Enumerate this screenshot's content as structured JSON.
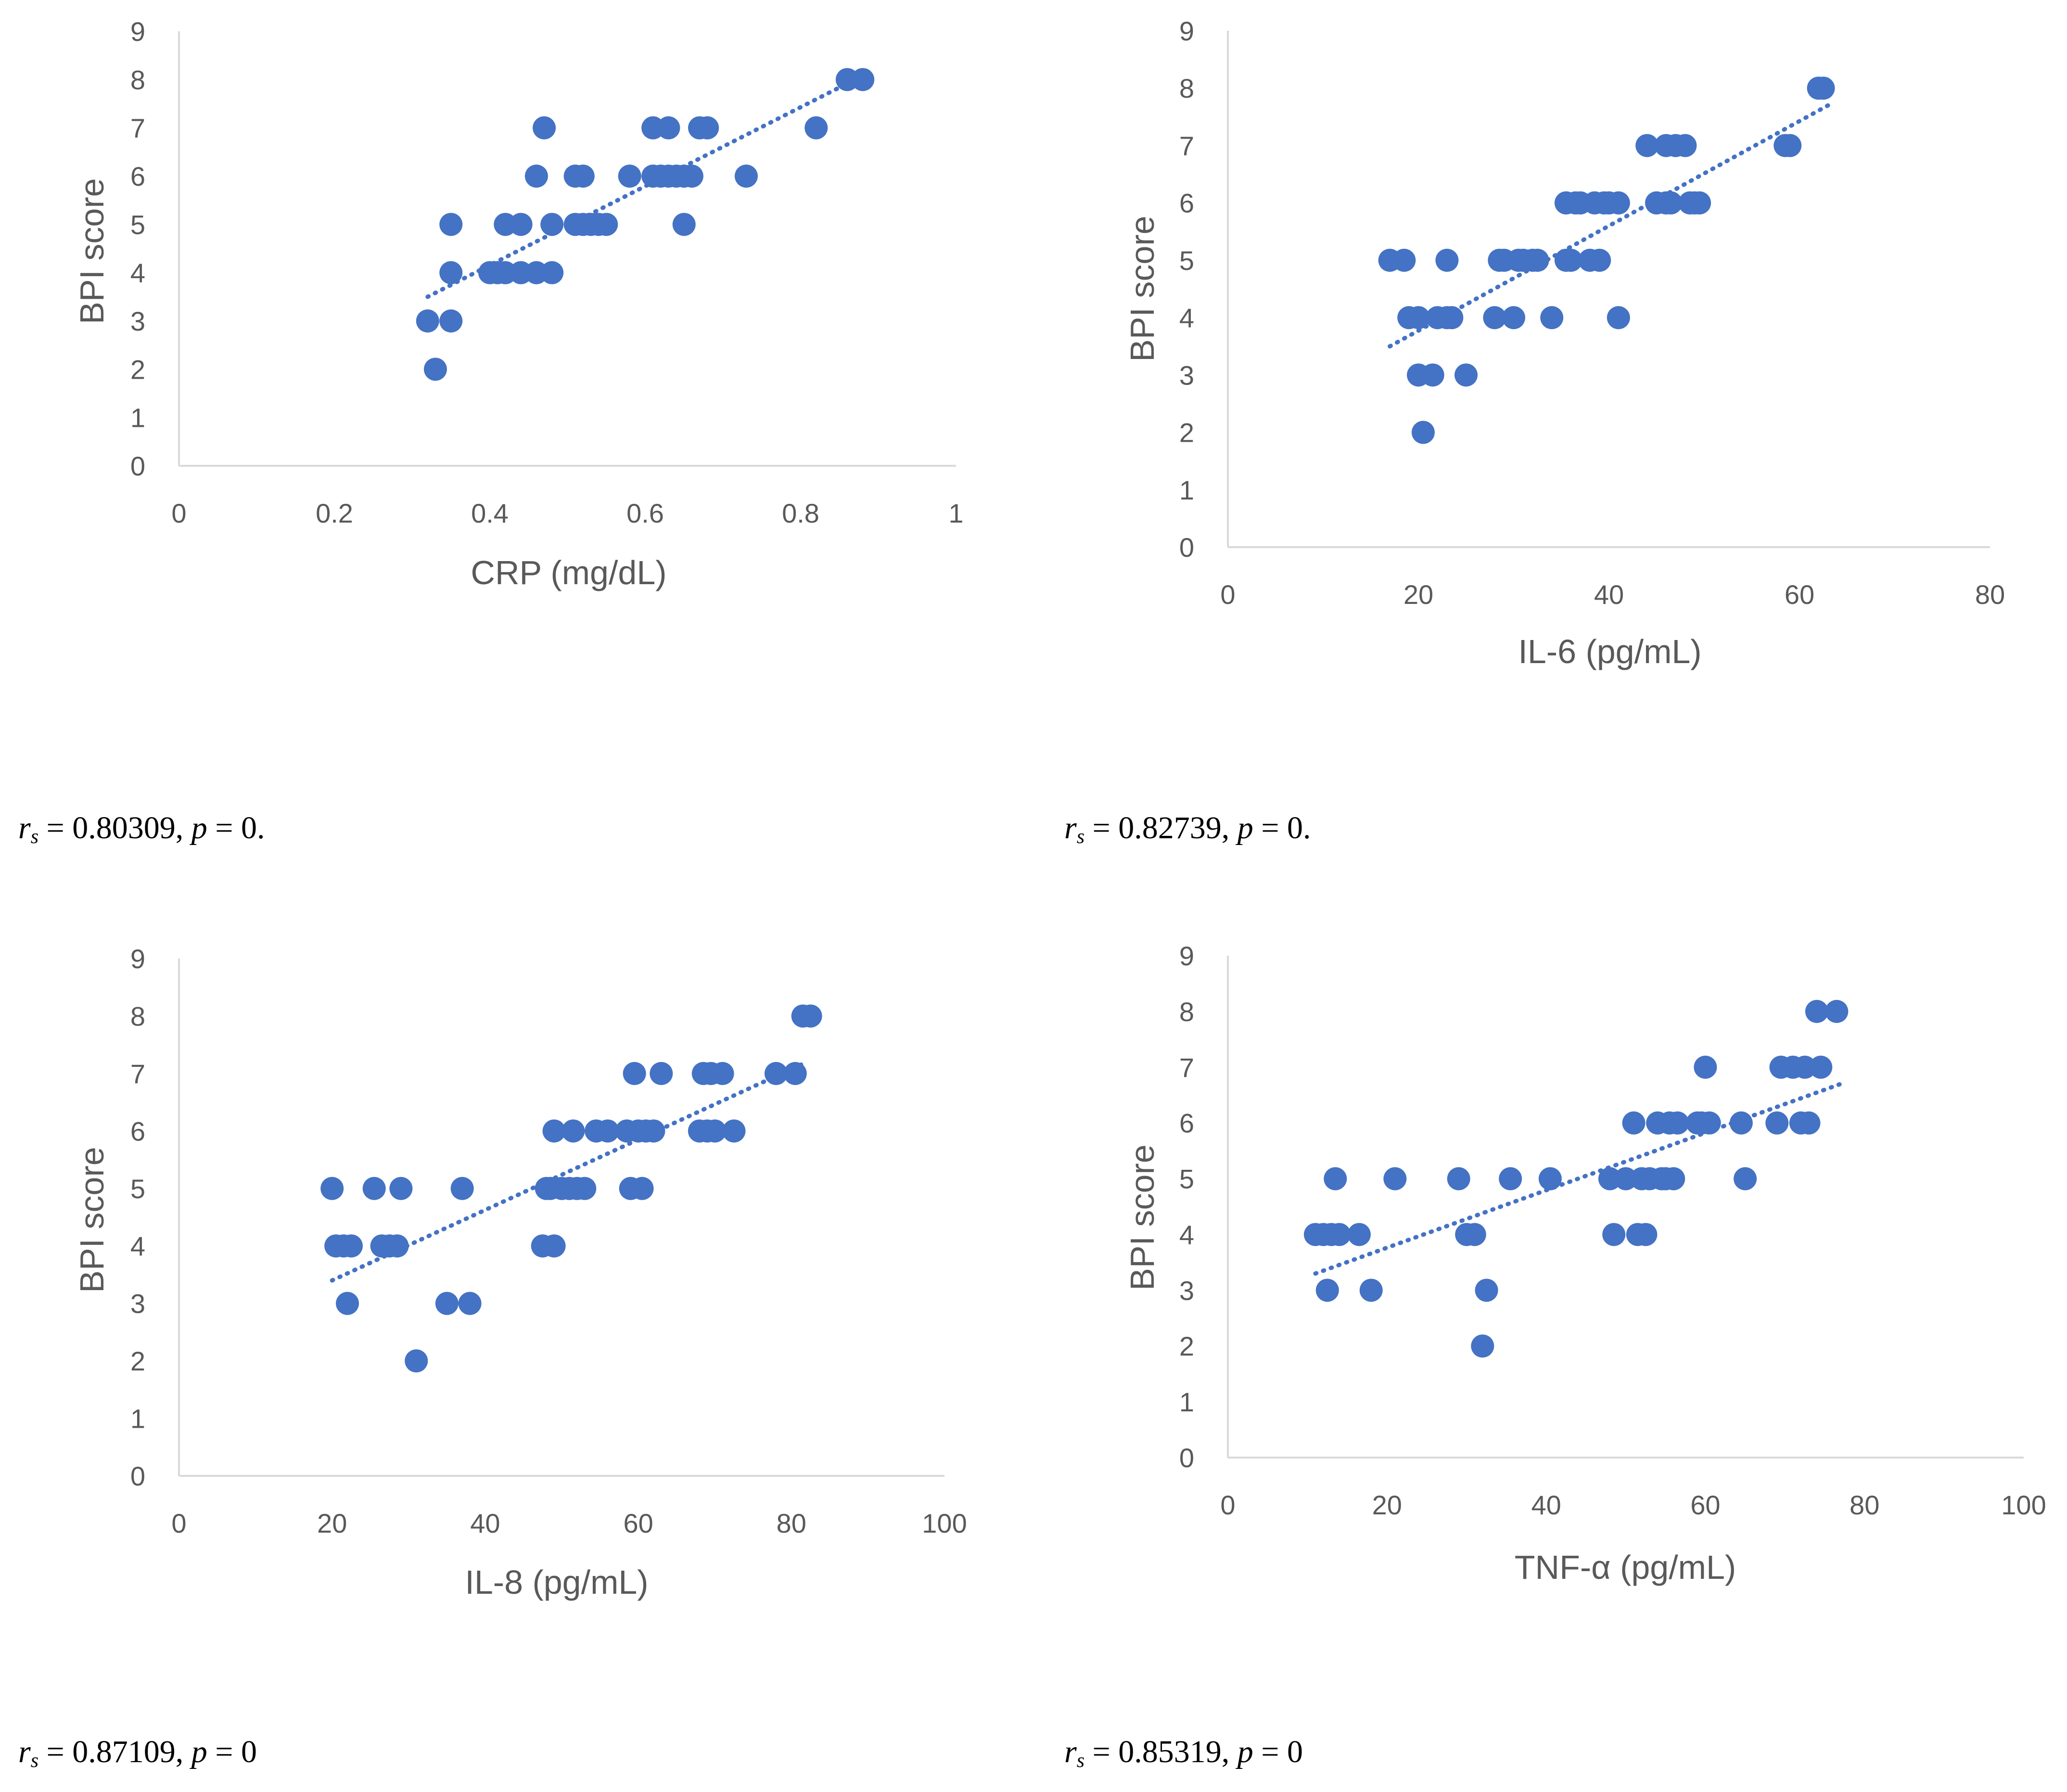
{
  "colors": {
    "marker": "#4472c4",
    "axis": "#d9d9d9",
    "text": "#595959",
    "stats": "#000000"
  },
  "chart_data": [
    {
      "type": "scatter",
      "title": "",
      "xlabel": "CRP (mg/dL)",
      "ylabel": "BPI score",
      "xlim": [
        0,
        1
      ],
      "ylim": [
        0,
        9
      ],
      "xticks": [
        "0",
        "0.2",
        "0.4",
        "0.6",
        "0.8",
        "1"
      ],
      "yticks": [
        "0",
        "1",
        "2",
        "3",
        "4",
        "5",
        "6",
        "7",
        "8",
        "9"
      ],
      "trendline": {
        "style": "dotted-linear",
        "x": [
          0.32,
          0.87
        ],
        "y": [
          3.5,
          8.0
        ]
      },
      "points": [
        [
          0.32,
          3
        ],
        [
          0.33,
          2
        ],
        [
          0.35,
          3
        ],
        [
          0.35,
          4
        ],
        [
          0.35,
          5
        ],
        [
          0.4,
          4
        ],
        [
          0.41,
          4
        ],
        [
          0.42,
          4
        ],
        [
          0.42,
          5
        ],
        [
          0.44,
          4
        ],
        [
          0.44,
          5
        ],
        [
          0.46,
          4
        ],
        [
          0.46,
          6
        ],
        [
          0.47,
          7
        ],
        [
          0.48,
          4
        ],
        [
          0.48,
          5
        ],
        [
          0.51,
          5
        ],
        [
          0.51,
          6
        ],
        [
          0.52,
          6
        ],
        [
          0.52,
          5
        ],
        [
          0.53,
          5
        ],
        [
          0.54,
          5
        ],
        [
          0.55,
          5
        ],
        [
          0.58,
          6
        ],
        [
          0.61,
          6
        ],
        [
          0.61,
          7
        ],
        [
          0.62,
          6
        ],
        [
          0.63,
          6
        ],
        [
          0.63,
          7
        ],
        [
          0.64,
          6
        ],
        [
          0.65,
          5
        ],
        [
          0.65,
          6
        ],
        [
          0.66,
          6
        ],
        [
          0.67,
          7
        ],
        [
          0.68,
          7
        ],
        [
          0.73,
          6
        ],
        [
          0.82,
          7
        ],
        [
          0.86,
          8
        ],
        [
          0.88,
          8
        ]
      ],
      "stats": {
        "rs_label": "r",
        "rs_sub": "s",
        "rs_value": " = 0.80309, ",
        "p_label": "p",
        "p_value": " = 0."
      }
    },
    {
      "type": "scatter",
      "title": "",
      "xlabel": "IL-6 (pg/mL)",
      "ylabel": "BPI score",
      "xlim": [
        0,
        80
      ],
      "ylim": [
        0,
        9
      ],
      "xticks": [
        "0",
        "20",
        "40",
        "60",
        "80"
      ],
      "yticks": [
        "0",
        "1",
        "2",
        "3",
        "4",
        "5",
        "6",
        "7",
        "8",
        "9"
      ],
      "trendline": {
        "style": "dotted-linear",
        "x": [
          17,
          63
        ],
        "y": [
          3.5,
          7.7
        ]
      },
      "points": [
        [
          17,
          5
        ],
        [
          18.5,
          5
        ],
        [
          19,
          4
        ],
        [
          20,
          4
        ],
        [
          20,
          3
        ],
        [
          20.5,
          2
        ],
        [
          21.5,
          3
        ],
        [
          22,
          4
        ],
        [
          23,
          4
        ],
        [
          23,
          5
        ],
        [
          23.5,
          4
        ],
        [
          25,
          3
        ],
        [
          28,
          4
        ],
        [
          28.5,
          5
        ],
        [
          29,
          5
        ],
        [
          30,
          4
        ],
        [
          30.5,
          5
        ],
        [
          31,
          5
        ],
        [
          32,
          5
        ],
        [
          32.5,
          5
        ],
        [
          34,
          4
        ],
        [
          35.5,
          6
        ],
        [
          35.5,
          5
        ],
        [
          36,
          5
        ],
        [
          36.5,
          6
        ],
        [
          37,
          6
        ],
        [
          38,
          5
        ],
        [
          38.5,
          6
        ],
        [
          39,
          5
        ],
        [
          39.5,
          6
        ],
        [
          40,
          6
        ],
        [
          41,
          6
        ],
        [
          41,
          4
        ],
        [
          44,
          7
        ],
        [
          45,
          6
        ],
        [
          46,
          7
        ],
        [
          46,
          6
        ],
        [
          46.5,
          6
        ],
        [
          47,
          7
        ],
        [
          48,
          7
        ],
        [
          48.5,
          6
        ],
        [
          49,
          6
        ],
        [
          49.5,
          6
        ],
        [
          58.5,
          7
        ],
        [
          59,
          7
        ],
        [
          62,
          8
        ],
        [
          62.5,
          8
        ]
      ],
      "stats": {
        "rs_label": "r",
        "rs_sub": "s",
        "rs_value": " = 0.82739, ",
        "p_label": "p",
        "p_value": " = 0."
      }
    },
    {
      "type": "scatter",
      "title": "",
      "xlabel": "IL-8 (pg/mL)",
      "ylabel": "BPI score",
      "xlim": [
        0,
        100
      ],
      "ylim": [
        0,
        9
      ],
      "xticks": [
        "0",
        "20",
        "40",
        "60",
        "80",
        "100"
      ],
      "yticks": [
        "0",
        "1",
        "2",
        "3",
        "4",
        "5",
        "6",
        "7",
        "8",
        "9"
      ],
      "trendline": {
        "style": "dotted-linear",
        "x": [
          20,
          82
        ],
        "y": [
          3.4,
          7.2
        ]
      },
      "points": [
        [
          20,
          5
        ],
        [
          20.5,
          4
        ],
        [
          21.5,
          4
        ],
        [
          22,
          3
        ],
        [
          22.5,
          4
        ],
        [
          25.5,
          5
        ],
        [
          26.5,
          4
        ],
        [
          27.5,
          4
        ],
        [
          28.5,
          4
        ],
        [
          29,
          5
        ],
        [
          31,
          2
        ],
        [
          35,
          3
        ],
        [
          37,
          5
        ],
        [
          38,
          3
        ],
        [
          47.5,
          4
        ],
        [
          48,
          5
        ],
        [
          48.5,
          5
        ],
        [
          49,
          6
        ],
        [
          49,
          4
        ],
        [
          50,
          5
        ],
        [
          51,
          5
        ],
        [
          51.5,
          6
        ],
        [
          52,
          5
        ],
        [
          53,
          5
        ],
        [
          54.5,
          6
        ],
        [
          56,
          6
        ],
        [
          58.5,
          6
        ],
        [
          59,
          5
        ],
        [
          59.5,
          7
        ],
        [
          60,
          6
        ],
        [
          60.5,
          5
        ],
        [
          61,
          6
        ],
        [
          62,
          6
        ],
        [
          63,
          7
        ],
        [
          68,
          6
        ],
        [
          68.5,
          7
        ],
        [
          69,
          6
        ],
        [
          69.5,
          7
        ],
        [
          70,
          6
        ],
        [
          71,
          7
        ],
        [
          72.5,
          6
        ],
        [
          78,
          7
        ],
        [
          80.5,
          7
        ],
        [
          81.5,
          8
        ],
        [
          82.5,
          8
        ]
      ],
      "stats": {
        "rs_label": "r",
        "rs_sub": "s",
        "rs_value": " = 0.87109, ",
        "p_label": "p",
        "p_value": " = 0"
      }
    },
    {
      "type": "scatter",
      "title": "",
      "xlabel": "TNF-α (pg/mL)",
      "ylabel": "BPI score",
      "xlim": [
        0,
        100
      ],
      "ylim": [
        0,
        9
      ],
      "xticks": [
        "0",
        "20",
        "40",
        "60",
        "80",
        "100"
      ],
      "yticks": [
        "0",
        "1",
        "2",
        "3",
        "4",
        "5",
        "6",
        "7",
        "8",
        "9"
      ],
      "trendline": {
        "style": "dotted-linear",
        "x": [
          11,
          77
        ],
        "y": [
          3.3,
          6.7
        ]
      },
      "points": [
        [
          11,
          4
        ],
        [
          12,
          4
        ],
        [
          12.5,
          3
        ],
        [
          13,
          4
        ],
        [
          13.5,
          5
        ],
        [
          14,
          4
        ],
        [
          16.5,
          4
        ],
        [
          18,
          3
        ],
        [
          21,
          5
        ],
        [
          29,
          5
        ],
        [
          30,
          4
        ],
        [
          31,
          4
        ],
        [
          32,
          2
        ],
        [
          32.5,
          3
        ],
        [
          35.5,
          5
        ],
        [
          40.5,
          5
        ],
        [
          48,
          5
        ],
        [
          48.5,
          4
        ],
        [
          50,
          5
        ],
        [
          51,
          6
        ],
        [
          51.5,
          4
        ],
        [
          52,
          5
        ],
        [
          52.5,
          4
        ],
        [
          53,
          5
        ],
        [
          54,
          6
        ],
        [
          54.5,
          5
        ],
        [
          55,
          5
        ],
        [
          55.5,
          6
        ],
        [
          56,
          5
        ],
        [
          56.5,
          6
        ],
        [
          59,
          6
        ],
        [
          59.5,
          6
        ],
        [
          60,
          7
        ],
        [
          60.5,
          6
        ],
        [
          64.5,
          6
        ],
        [
          65,
          5
        ],
        [
          69,
          6
        ],
        [
          69.5,
          7
        ],
        [
          71,
          7
        ],
        [
          72,
          6
        ],
        [
          72.5,
          7
        ],
        [
          73,
          6
        ],
        [
          74,
          8
        ],
        [
          74.5,
          7
        ],
        [
          76.5,
          8
        ]
      ],
      "stats": {
        "rs_label": "r",
        "rs_sub": "s",
        "rs_value": " = 0.85319, ",
        "p_label": "p",
        "p_value": " = 0"
      }
    }
  ]
}
